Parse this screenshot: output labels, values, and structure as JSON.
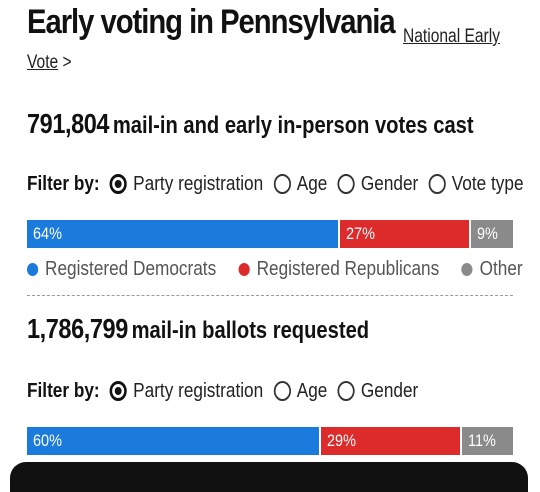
{
  "header": {
    "title": "Early voting in Pennsylvania",
    "link_part1": "National Early",
    "link_part2": "Vote",
    "link_arrow": ">"
  },
  "colors": {
    "democrats": "#1a7bdc",
    "republicans": "#dd2a2a",
    "other": "#8a8a8a"
  },
  "votes_cast": {
    "count": "791,804",
    "label": "mail-in and early in-person votes cast",
    "filter_label": "Filter by:",
    "filters": [
      "Party registration",
      "Age",
      "Gender",
      "Vote type"
    ],
    "selected_filter": "Party registration",
    "bar": [
      {
        "label": "64%",
        "value": 64,
        "party": "democrats"
      },
      {
        "label": "27%",
        "value": 27,
        "party": "republicans"
      },
      {
        "label": "9%",
        "value": 9,
        "party": "other"
      }
    ],
    "legend": [
      "Registered Democrats",
      "Registered Republicans",
      "Other"
    ]
  },
  "ballots_requested": {
    "count": "1,786,799",
    "label": "mail-in ballots requested",
    "filter_label": "Filter by:",
    "filters": [
      "Party registration",
      "Age",
      "Gender"
    ],
    "selected_filter": "Party registration",
    "bar": [
      {
        "label": "60%",
        "value": 60,
        "party": "democrats"
      },
      {
        "label": "29%",
        "value": 29,
        "party": "republicans"
      },
      {
        "label": "11%",
        "value": 11,
        "party": "other"
      }
    ]
  }
}
